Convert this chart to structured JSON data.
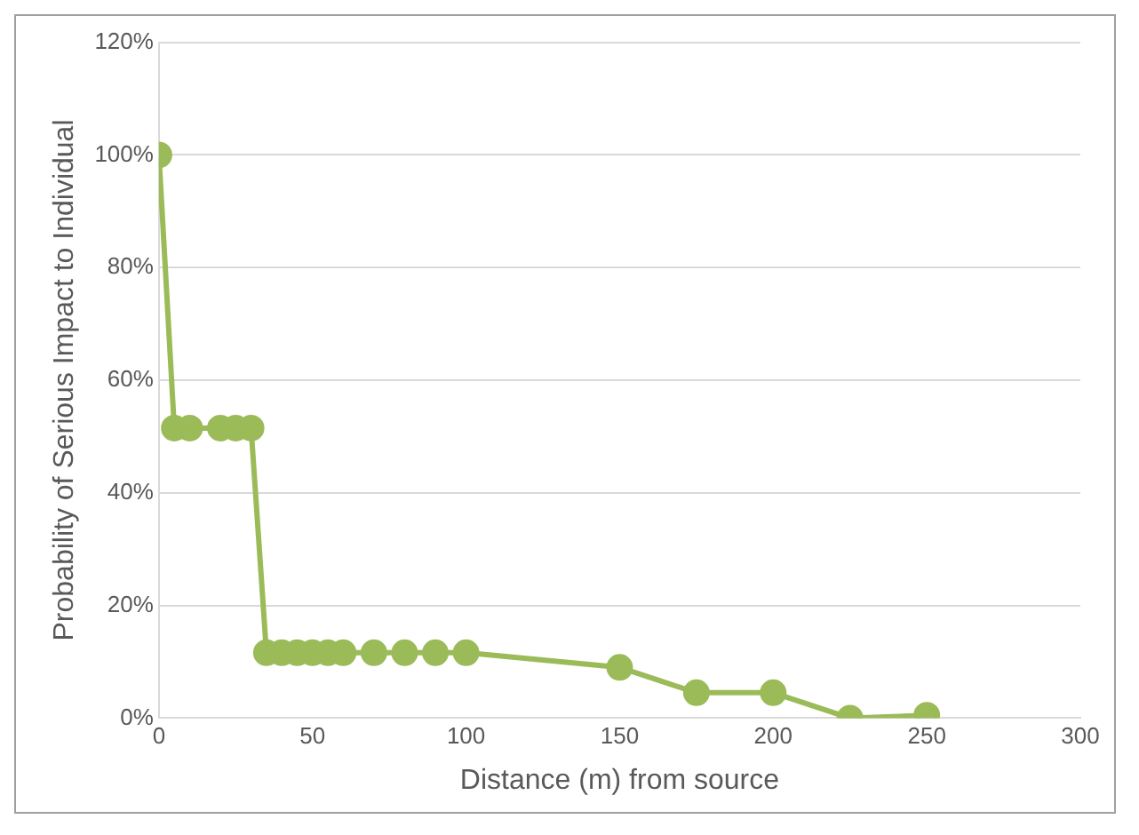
{
  "chart_data": {
    "type": "line",
    "xlabel": "Distance (m) from source",
    "ylabel": "Probability of Serious Impact to Individual",
    "x": [
      0,
      5,
      10,
      20,
      25,
      30,
      35,
      40,
      45,
      50,
      55,
      60,
      70,
      80,
      90,
      100,
      150,
      175,
      200,
      225,
      250
    ],
    "series": [
      {
        "color": "#9bbb59",
        "values": [
          100,
          51.5,
          51.5,
          51.5,
          51.5,
          51.5,
          11.6,
          11.6,
          11.6,
          11.6,
          11.6,
          11.6,
          11.6,
          11.6,
          11.6,
          11.6,
          9,
          4.5,
          4.5,
          0,
          0.5
        ]
      }
    ],
    "xlim": [
      0,
      300
    ],
    "xticks": [
      0,
      50,
      100,
      150,
      200,
      250,
      300
    ],
    "ylim": [
      0,
      120
    ],
    "yticks": [
      {
        "value": 0,
        "label": "0%"
      },
      {
        "value": 20,
        "label": "20%"
      },
      {
        "value": 40,
        "label": "40%"
      },
      {
        "value": 60,
        "label": "60%"
      },
      {
        "value": 80,
        "label": "80%"
      },
      {
        "value": 100,
        "label": "100%"
      },
      {
        "value": 120,
        "label": "120%"
      }
    ],
    "grid": "y",
    "legend": false,
    "marker": "circle",
    "line_style": "solid"
  }
}
